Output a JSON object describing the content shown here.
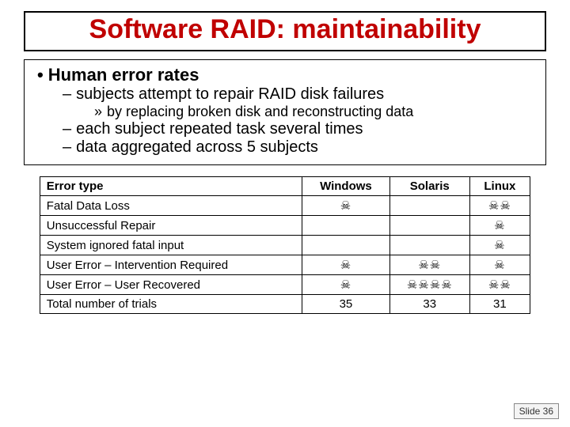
{
  "title": "Software RAID: maintainability",
  "bullets": {
    "l1": "Human error rates",
    "l2a": "subjects attempt to repair RAID disk failures",
    "l3a": "by replacing broken disk and reconstructing data",
    "l2b": "each subject repeated task several times",
    "l2c": "data aggregated across 5 subjects"
  },
  "table": {
    "headers": [
      "Error type",
      "Windows",
      "Solaris",
      "Linux"
    ],
    "rows": [
      {
        "label": "Fatal Data Loss",
        "cells": [
          "☠",
          "",
          "☠☠"
        ]
      },
      {
        "label": "Unsuccessful Repair",
        "cells": [
          "",
          "",
          "☠"
        ]
      },
      {
        "label": "System ignored fatal input",
        "cells": [
          "",
          "",
          "☠"
        ]
      },
      {
        "label": "User Error – Intervention Required",
        "cells": [
          "☠",
          "☠☠",
          "☠"
        ]
      },
      {
        "label": "User Error – User Recovered",
        "cells": [
          "☠",
          "☠☠☠☠",
          "☠☠"
        ]
      },
      {
        "label": "Total number of trials",
        "cells": [
          "35",
          "33",
          "31"
        ]
      }
    ]
  },
  "slide_number": "Slide 36",
  "colors": {
    "title_color": "#c00000",
    "border_color": "#000000",
    "background": "#ffffff"
  }
}
